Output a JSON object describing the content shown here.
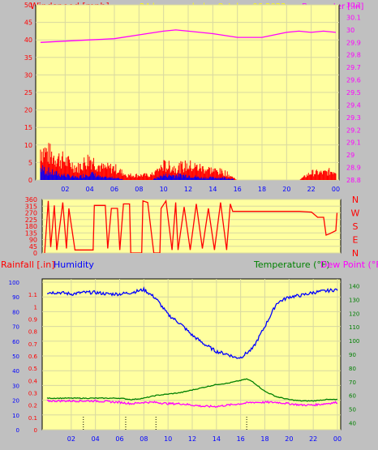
{
  "header": {
    "windspeed_label": "Windspeed [mph]",
    "title": "24 hour graph day   October 06 2022",
    "barometer_label": "Barometer [.in]"
  },
  "lower_header": {
    "rainfall_label": "Rainfall [.in]",
    "humidity_label": "Humidity",
    "temperature_label": "Temperature (°F)",
    "dewpoint_label": "Dew Point (°F)"
  },
  "x_ticks": [
    "02",
    "04",
    "06",
    "08",
    "10",
    "12",
    "14",
    "16",
    "18",
    "20",
    "22",
    "00"
  ],
  "colors": {
    "plot_bg": "#ffffa0",
    "frame_bg": "#c0c0c0",
    "wind": "#ff0000",
    "wind_direction": "#ff0000",
    "barometer": "#ff00ff",
    "humidity": "#0000ff",
    "temperature": "#008000",
    "dewpoint": "#ff00ff",
    "title": "#ffff00",
    "axis_red": "#ff0000",
    "axis_blue": "#0000ff",
    "axis_green": "#008000"
  },
  "chart_data": [
    {
      "type": "line",
      "id": "wind_barometer",
      "y_left_label": "Windspeed [mph]",
      "y_left_ticks": [
        "50",
        "45",
        "40",
        "35",
        "30",
        "25",
        "20",
        "15",
        "10",
        "5",
        "0"
      ],
      "y_left_range": [
        0,
        50
      ],
      "y_right_label": "Barometer [.in]",
      "y_right_ticks": [
        "30.2",
        "30.1",
        "30",
        "29.9",
        "29.8",
        "29.7",
        "29.6",
        "29.5",
        "29.4",
        "29.3",
        "29.2",
        "29.1",
        "29",
        "28.9",
        "28.8"
      ],
      "y_right_range": [
        28.8,
        30.2
      ],
      "x_hours": [
        0,
        24
      ],
      "barometer": {
        "name": "Barometer",
        "points": [
          [
            0,
            29.9
          ],
          [
            2,
            29.91
          ],
          [
            4,
            29.92
          ],
          [
            6,
            29.93
          ],
          [
            8,
            29.96
          ],
          [
            10,
            29.99
          ],
          [
            11,
            30.0
          ],
          [
            12,
            29.99
          ],
          [
            14,
            29.97
          ],
          [
            16,
            29.94
          ],
          [
            18,
            29.94
          ],
          [
            19,
            29.96
          ],
          [
            20,
            29.98
          ],
          [
            21,
            29.99
          ],
          [
            22,
            29.98
          ],
          [
            23,
            29.99
          ],
          [
            24,
            29.98
          ]
        ]
      },
      "wind_max": {
        "name": "Windspeed",
        "points": [
          [
            0,
            13
          ],
          [
            1,
            10
          ],
          [
            2,
            8
          ],
          [
            3,
            5
          ],
          [
            4,
            9
          ],
          [
            5,
            5
          ],
          [
            6,
            5
          ],
          [
            7,
            2
          ],
          [
            8,
            2
          ],
          [
            9,
            2
          ],
          [
            10,
            6
          ],
          [
            11,
            5
          ],
          [
            12,
            6
          ],
          [
            13,
            5
          ],
          [
            14,
            4
          ],
          [
            15,
            3
          ],
          [
            16,
            0
          ],
          [
            17,
            0
          ],
          [
            18,
            0
          ],
          [
            19,
            0
          ],
          [
            20,
            0
          ],
          [
            21,
            0
          ],
          [
            22,
            3
          ],
          [
            23,
            3
          ],
          [
            24,
            4
          ]
        ]
      },
      "wind_avg": {
        "name": "Wind average",
        "points": [
          [
            0,
            5
          ],
          [
            1,
            3
          ],
          [
            2,
            2
          ],
          [
            3,
            1
          ],
          [
            4,
            3
          ],
          [
            5,
            1
          ],
          [
            6,
            1
          ],
          [
            7,
            0
          ],
          [
            8,
            0
          ],
          [
            9,
            0
          ],
          [
            10,
            2
          ],
          [
            11,
            2
          ],
          [
            12,
            2
          ],
          [
            13,
            1
          ],
          [
            14,
            1
          ],
          [
            15,
            1
          ],
          [
            16,
            0
          ],
          [
            24,
            0
          ]
        ]
      }
    },
    {
      "type": "line",
      "id": "wind_direction",
      "y_left_ticks": [
        "360",
        "315",
        "270",
        "225",
        "180",
        "135",
        "90",
        "45",
        "0"
      ],
      "y_left_range": [
        0,
        360
      ],
      "y_right_ticks": [
        "N",
        "W",
        "S",
        "E",
        "N"
      ],
      "x_hours": [
        0,
        24
      ],
      "direction": {
        "name": "Wind direction",
        "points": [
          [
            0,
            0
          ],
          [
            0.3,
            350
          ],
          [
            0.5,
            40
          ],
          [
            0.8,
            320
          ],
          [
            1,
            20
          ],
          [
            1.5,
            340
          ],
          [
            1.8,
            30
          ],
          [
            2,
            300
          ],
          [
            2.5,
            20
          ],
          [
            3,
            20
          ],
          [
            4,
            20
          ],
          [
            4.1,
            320
          ],
          [
            5,
            320
          ],
          [
            5.2,
            30
          ],
          [
            5.5,
            300
          ],
          [
            6,
            300
          ],
          [
            6.2,
            20
          ],
          [
            6.5,
            330
          ],
          [
            7,
            330
          ],
          [
            7.1,
            0
          ],
          [
            8,
            0
          ],
          [
            8.1,
            350
          ],
          [
            8.5,
            340
          ],
          [
            9,
            0
          ],
          [
            9.5,
            0
          ],
          [
            9.6,
            300
          ],
          [
            10,
            350
          ],
          [
            10.5,
            20
          ],
          [
            10.8,
            340
          ],
          [
            11,
            20
          ],
          [
            11.5,
            310
          ],
          [
            12,
            20
          ],
          [
            12.5,
            330
          ],
          [
            13,
            30
          ],
          [
            13.5,
            300
          ],
          [
            14,
            20
          ],
          [
            14.5,
            340
          ],
          [
            15,
            20
          ],
          [
            15.3,
            330
          ],
          [
            15.5,
            280
          ],
          [
            16,
            280
          ],
          [
            18,
            280
          ],
          [
            19,
            280
          ],
          [
            20,
            280
          ],
          [
            21,
            280
          ],
          [
            22,
            275
          ],
          [
            22.5,
            240
          ],
          [
            23,
            240
          ],
          [
            23.2,
            120
          ],
          [
            23.5,
            130
          ],
          [
            24,
            150
          ],
          [
            24.1,
            270
          ]
        ]
      }
    },
    {
      "type": "line",
      "id": "temp_humidity",
      "y_left_label": "Rainfall [.in]",
      "y_left_ticks": [
        "1.1",
        "1",
        "0.9",
        "0.8",
        "0.7",
        "0.6",
        "0.5",
        "0.4",
        "0.3",
        "0.2",
        "0.1",
        "0"
      ],
      "y_left_range": [
        0,
        1.2
      ],
      "y_humidity_ticks": [
        "100",
        "90",
        "80",
        "70",
        "60",
        "50",
        "40",
        "30",
        "20",
        "10",
        "0"
      ],
      "y_humidity_range": [
        0,
        100
      ],
      "y_right_label": "Temperature (°F)",
      "y_right_ticks": [
        "140",
        "130",
        "120",
        "110",
        "100",
        "90",
        "80",
        "70",
        "60",
        "50",
        "40"
      ],
      "y_right_range": [
        35,
        145
      ],
      "x_hours": [
        0,
        24
      ],
      "humidity": {
        "name": "Humidity",
        "points": [
          [
            0,
            93
          ],
          [
            1,
            93
          ],
          [
            2,
            92
          ],
          [
            3,
            93
          ],
          [
            4,
            93
          ],
          [
            5,
            92
          ],
          [
            6,
            92
          ],
          [
            7,
            93
          ],
          [
            8,
            95
          ],
          [
            9,
            89
          ],
          [
            10,
            78
          ],
          [
            11,
            72
          ],
          [
            12,
            64
          ],
          [
            13,
            58
          ],
          [
            14,
            53
          ],
          [
            15,
            51
          ],
          [
            15.5,
            49
          ],
          [
            16,
            49
          ],
          [
            17,
            55
          ],
          [
            18,
            70
          ],
          [
            19,
            86
          ],
          [
            20,
            90
          ],
          [
            21,
            91
          ],
          [
            22,
            93
          ],
          [
            23,
            94
          ],
          [
            24,
            95
          ]
        ]
      },
      "temperature": {
        "name": "Temperature",
        "points": [
          [
            0,
            58
          ],
          [
            2,
            58
          ],
          [
            4,
            58
          ],
          [
            6,
            58
          ],
          [
            7,
            57
          ],
          [
            8,
            58
          ],
          [
            9,
            60
          ],
          [
            10,
            61
          ],
          [
            11,
            62
          ],
          [
            12,
            64
          ],
          [
            13,
            66
          ],
          [
            14,
            68
          ],
          [
            15,
            69
          ],
          [
            16,
            71
          ],
          [
            16.5,
            72
          ],
          [
            17,
            70
          ],
          [
            18,
            63
          ],
          [
            19,
            59
          ],
          [
            20,
            57
          ],
          [
            21,
            56
          ],
          [
            22,
            56
          ],
          [
            23,
            57
          ],
          [
            24,
            57
          ]
        ]
      },
      "dewpoint": {
        "name": "Dew Point",
        "points": [
          [
            0,
            56
          ],
          [
            2,
            56
          ],
          [
            4,
            56
          ],
          [
            6,
            55
          ],
          [
            7,
            54
          ],
          [
            8,
            55
          ],
          [
            9,
            55
          ],
          [
            10,
            54
          ],
          [
            11,
            54
          ],
          [
            12,
            53
          ],
          [
            13,
            52
          ],
          [
            14,
            52
          ],
          [
            15,
            53
          ],
          [
            16,
            54
          ],
          [
            17,
            55
          ],
          [
            18,
            55
          ],
          [
            19,
            55
          ],
          [
            20,
            54
          ],
          [
            21,
            53
          ],
          [
            22,
            53
          ],
          [
            23,
            54
          ],
          [
            24,
            55
          ]
        ]
      },
      "rain_markers_hours": [
        3,
        6.5,
        9,
        16.5
      ]
    }
  ]
}
